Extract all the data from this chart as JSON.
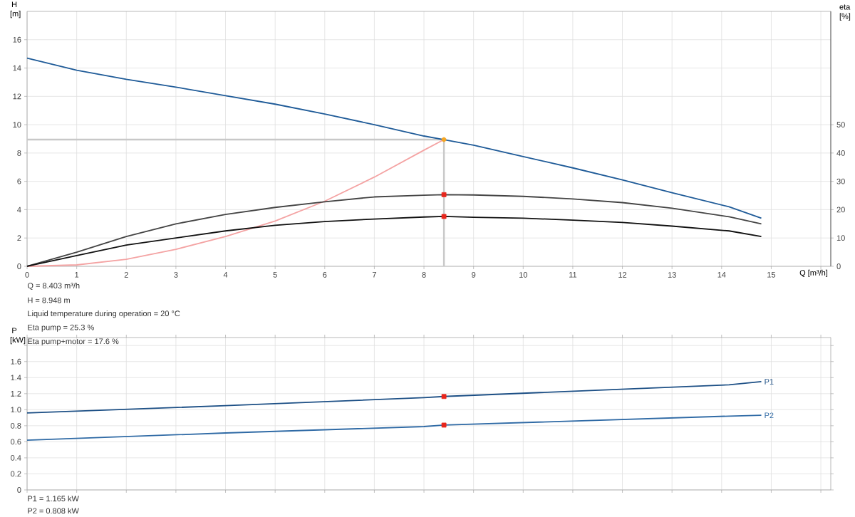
{
  "chart_data": [
    {
      "type": "line",
      "xlabel": "Q [m³/h]",
      "ylabel": "H [m]",
      "y2label": "eta [%]",
      "xlim": [
        0,
        16.2
      ],
      "xticks": [
        0,
        1,
        2,
        3,
        4,
        5,
        6,
        7,
        8,
        9,
        10,
        11,
        12,
        13,
        14,
        15,
        {
          "value": 16,
          "label": null
        }
      ],
      "ylim": [
        0,
        18
      ],
      "yticks": [
        0,
        2,
        4,
        6,
        8,
        10,
        12,
        14,
        16
      ],
      "y2lim": [
        0,
        90
      ],
      "y2ticks": [
        0,
        10,
        20,
        30,
        40,
        50
      ],
      "grid": true,
      "ref_lines": [
        {
          "axis": "x",
          "value": 8.403,
          "color": "#c8c8c8"
        },
        {
          "axis": "y",
          "value": 8.948,
          "color": "#c8c8c8"
        }
      ],
      "series": [
        {
          "type": "line",
          "color": "#1f5b98",
          "x": [
            0,
            1,
            2,
            3,
            4,
            5,
            6,
            7,
            8,
            8.403,
            9,
            10,
            11,
            12,
            13,
            14.15,
            14.8
          ],
          "values": [
            14.7,
            13.85,
            13.2,
            12.65,
            12.05,
            11.45,
            10.75,
            10.0,
            9.2,
            8.948,
            8.55,
            7.75,
            6.95,
            6.1,
            5.2,
            4.2,
            3.4
          ]
        },
        {
          "type": "line",
          "axis": "y2",
          "color": "#444444",
          "x": [
            0,
            1,
            2,
            3,
            4,
            5,
            6,
            7,
            8,
            8.403,
            9,
            10,
            11,
            12,
            13,
            14.15,
            14.8
          ],
          "values": [
            0,
            5,
            10.5,
            15,
            18.3,
            20.8,
            22.8,
            24.5,
            25.1,
            25.3,
            25.2,
            24.7,
            23.8,
            22.5,
            20.5,
            17.5,
            15
          ]
        },
        {
          "type": "line",
          "axis": "y2",
          "color": "#111111",
          "x": [
            0,
            1,
            2,
            3,
            4,
            5,
            6,
            7,
            8,
            8.403,
            9,
            10,
            11,
            12,
            13,
            14.15,
            14.8
          ],
          "values": [
            0,
            3.8,
            7.5,
            10,
            12.5,
            14.5,
            15.8,
            16.7,
            17.4,
            17.6,
            17.3,
            17.0,
            16.3,
            15.5,
            14.2,
            12.5,
            10.5
          ]
        },
        {
          "type": "line",
          "color": "#f4a3a3",
          "x": [
            0,
            1,
            2,
            3,
            4,
            5,
            6,
            7,
            8,
            8.403
          ],
          "values": [
            0,
            0.1,
            0.5,
            1.2,
            2.1,
            3.2,
            4.6,
            6.3,
            8.2,
            8.948
          ]
        },
        {
          "type": "scatter",
          "marker": "circle",
          "color": "#f5a623",
          "x": [
            8.403
          ],
          "values": [
            8.948
          ]
        },
        {
          "type": "scatter",
          "marker": "square",
          "axis": "y2",
          "color": "#e8261c",
          "x": [
            8.403
          ],
          "values": [
            25.3
          ]
        },
        {
          "type": "scatter",
          "marker": "square",
          "axis": "y2",
          "color": "#e8261c",
          "x": [
            8.403
          ],
          "values": [
            17.6
          ]
        }
      ],
      "annotations": [
        "Q = 8.403 m³/h",
        "H = 8.948 m",
        "Liquid temperature during operation = 20 °C",
        "Eta pump = 25.3 %",
        "Eta pump+motor = 17.6 %"
      ]
    },
    {
      "type": "line",
      "ylabel": "P [kW]",
      "xlim": [
        0,
        16.2
      ],
      "xticks": [
        0,
        1,
        2,
        3,
        4,
        5,
        6,
        7,
        8,
        9,
        10,
        11,
        12,
        13,
        14,
        15,
        16
      ],
      "ylim": [
        0,
        1.9
      ],
      "yticks": [
        0,
        0.2,
        0.4,
        0.6,
        0.8,
        {
          "value": 1,
          "label": "1.0"
        },
        1.2,
        1.4,
        1.6,
        {
          "value": 1.8,
          "label": null
        }
      ],
      "tick_labels": "y",
      "grid": true,
      "series": [
        {
          "type": "line",
          "name": "P1",
          "color": "#1c4f85",
          "x": [
            0,
            4,
            8,
            8.403,
            14.15,
            14.8
          ],
          "values": [
            0.96,
            1.05,
            1.15,
            1.165,
            1.31,
            1.35
          ]
        },
        {
          "type": "line",
          "name": "P2",
          "color": "#2f6aa5",
          "x": [
            0,
            4,
            8,
            8.403,
            14.15,
            14.8
          ],
          "values": [
            0.62,
            0.71,
            0.79,
            0.808,
            0.92,
            0.93
          ]
        },
        {
          "type": "scatter",
          "marker": "square",
          "color": "#e8261c",
          "x": [
            8.403
          ],
          "values": [
            1.165
          ]
        },
        {
          "type": "scatter",
          "marker": "square",
          "color": "#e8261c",
          "x": [
            8.403
          ],
          "values": [
            0.808
          ]
        }
      ],
      "annotations": [
        "P1 = 1.165 kW",
        "P2 = 0.808 kW"
      ]
    }
  ]
}
